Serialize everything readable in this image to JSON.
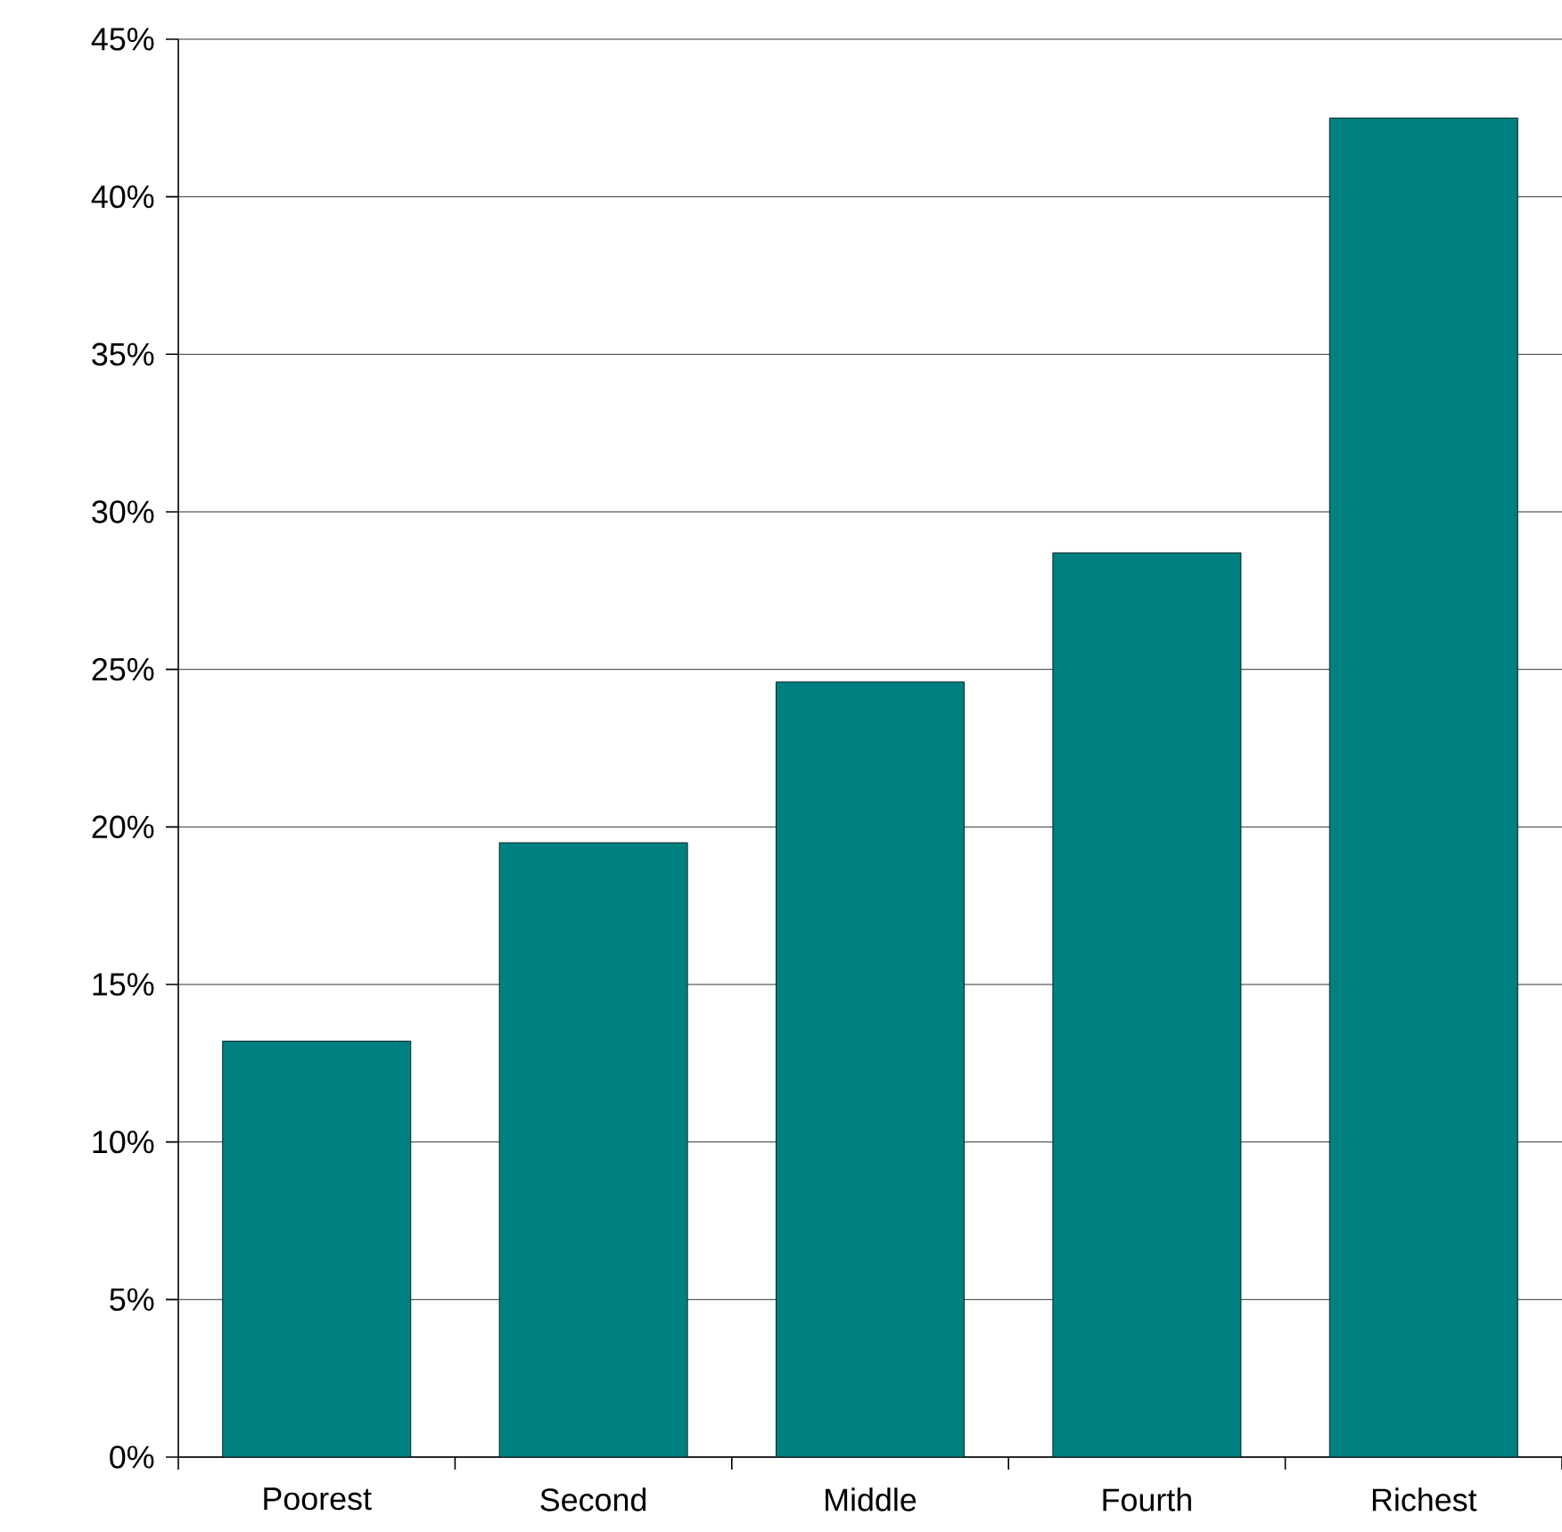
{
  "chart_data": {
    "type": "bar",
    "categories": [
      "Poorest",
      "Second",
      "Middle",
      "Fourth",
      "Richest"
    ],
    "values": [
      13.2,
      19.5,
      24.6,
      28.7,
      42.5
    ],
    "color": "#008080",
    "ylim": [
      0,
      45
    ],
    "yticks": [
      {
        "value": 0,
        "label": "0%"
      },
      {
        "value": 5,
        "label": "5%"
      },
      {
        "value": 10,
        "label": "10%"
      },
      {
        "value": 15,
        "label": "15%"
      },
      {
        "value": 20,
        "label": "20%"
      },
      {
        "value": 25,
        "label": "25%"
      },
      {
        "value": 30,
        "label": "30%"
      },
      {
        "value": 35,
        "label": "35%"
      },
      {
        "value": 40,
        "label": "40%"
      },
      {
        "value": 45,
        "label": "45%"
      }
    ],
    "grid": "y"
  }
}
